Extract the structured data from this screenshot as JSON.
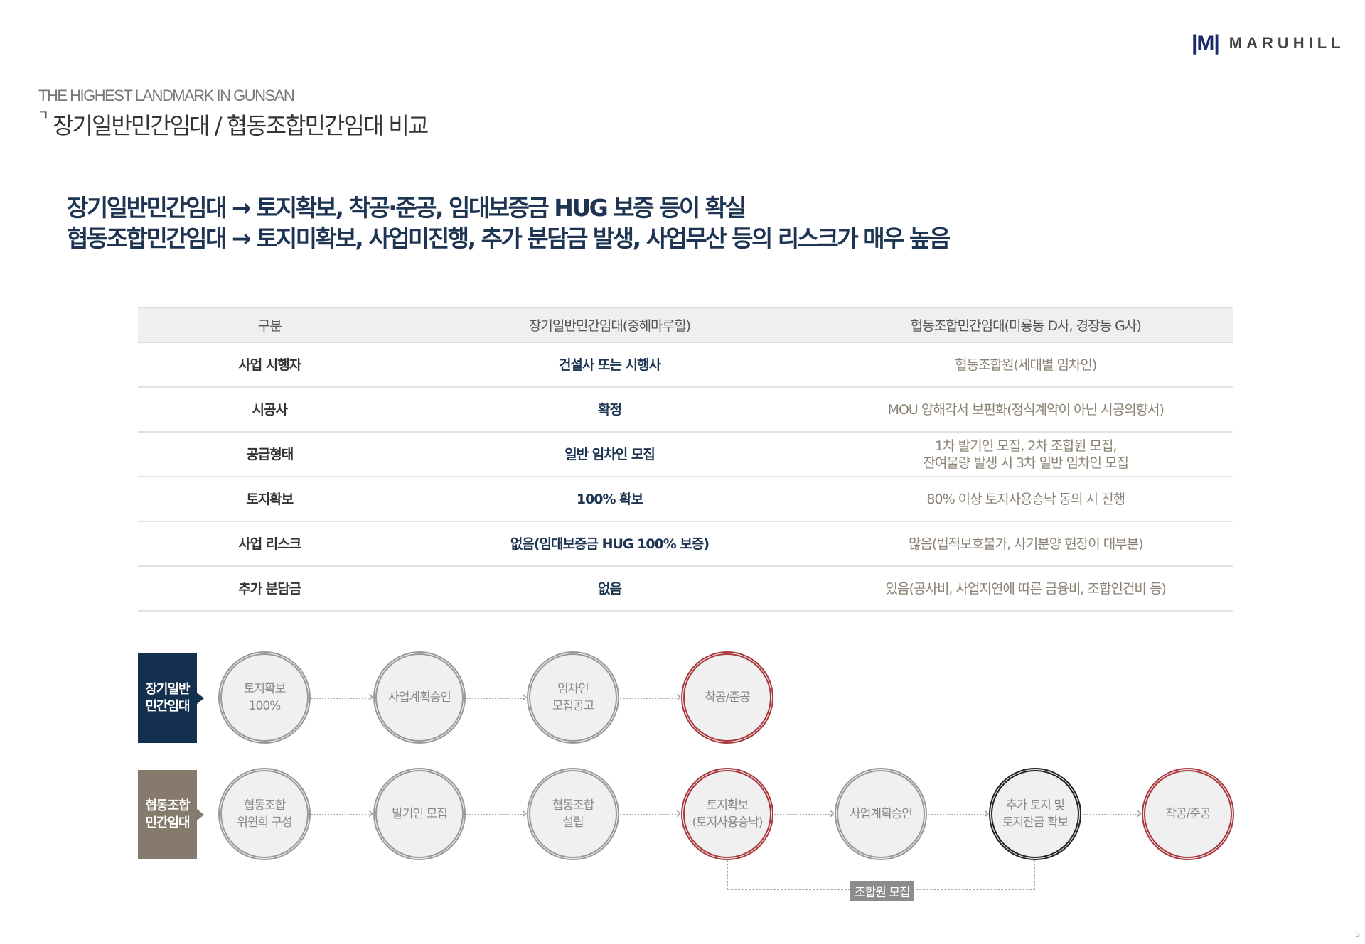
{
  "brand": {
    "mark": "|M|",
    "name": "MARUHILL"
  },
  "header": {
    "subtitle": "THE HIGHEST LANDMARK IN GUNSAN",
    "title_icon": "corner-bracket-icon",
    "title": "장기일반민간임대 / 협동조합민간임대 비교"
  },
  "headline": [
    "장기일반민간임대 → 토지확보, 착공·준공, 임대보증금 HUG 보증 등이 확실",
    "협동조합민간임대 → 토지미확보, 사업미진행, 추가 분담금 발생, 사업무산 등의 리스크가 매우 높음"
  ],
  "table": {
    "columns": [
      "구분",
      "장기일반민간임대(중해마루힐)",
      "협동조합민간임대(미룡동 D사, 경장동 G사)"
    ],
    "rows": [
      [
        "사업 시행자",
        "건설사 또는 시행사",
        "협동조합원(세대별 임차인)"
      ],
      [
        "시공사",
        "확정",
        "MOU 양해각서 보편화(정식계약이 아닌 시공의향서)"
      ],
      [
        "공급형태",
        "일반 임차인 모집",
        "1차 발기인 모집, 2차 조합원 모집,\n잔여물량 발생 시 3차 일반 임차인 모집"
      ],
      [
        "토지확보",
        "100% 확보",
        "80% 이상 토지사용승낙 동의 시 진행"
      ],
      [
        "사업 리스크",
        "없음(임대보증금 HUG 100% 보증)",
        "많음(법적보호불가, 사기분양 현장이 대부분)"
      ],
      [
        "추가 분담금",
        "없음",
        "있음(공사비, 사업지연에 따른 금융비, 조합인건비 등)"
      ]
    ]
  },
  "flow": {
    "colors": {
      "navy": "#13304e",
      "brown": "#857a6c",
      "red": "#a83a3e",
      "gray": "#9a9a9a",
      "black": "#222222"
    },
    "row1": {
      "label": "장기일반\n민간임대",
      "steps": [
        {
          "text": "토지확보\n100%",
          "style": "gray"
        },
        {
          "text": "사업계획승인",
          "style": "gray"
        },
        {
          "text": "임차인\n모집공고",
          "style": "gray"
        },
        {
          "text": "착공/준공",
          "style": "red"
        }
      ]
    },
    "row2": {
      "label": "협동조합\n민간임대",
      "steps": [
        {
          "text": "협동조합\n위원회 구성",
          "style": "gray"
        },
        {
          "text": "발기인 모집",
          "style": "gray"
        },
        {
          "text": "협동조합\n설립",
          "style": "gray"
        },
        {
          "text": "토지확보\n(토지사용승낙)",
          "style": "red"
        },
        {
          "text": "사업계획승인",
          "style": "gray"
        },
        {
          "text": "추가 토지 및\n토지잔금 확보",
          "style": "black"
        },
        {
          "text": "착공/준공",
          "style": "red"
        }
      ]
    },
    "bracket_label": "조합원 모집"
  },
  "page_number": "5"
}
